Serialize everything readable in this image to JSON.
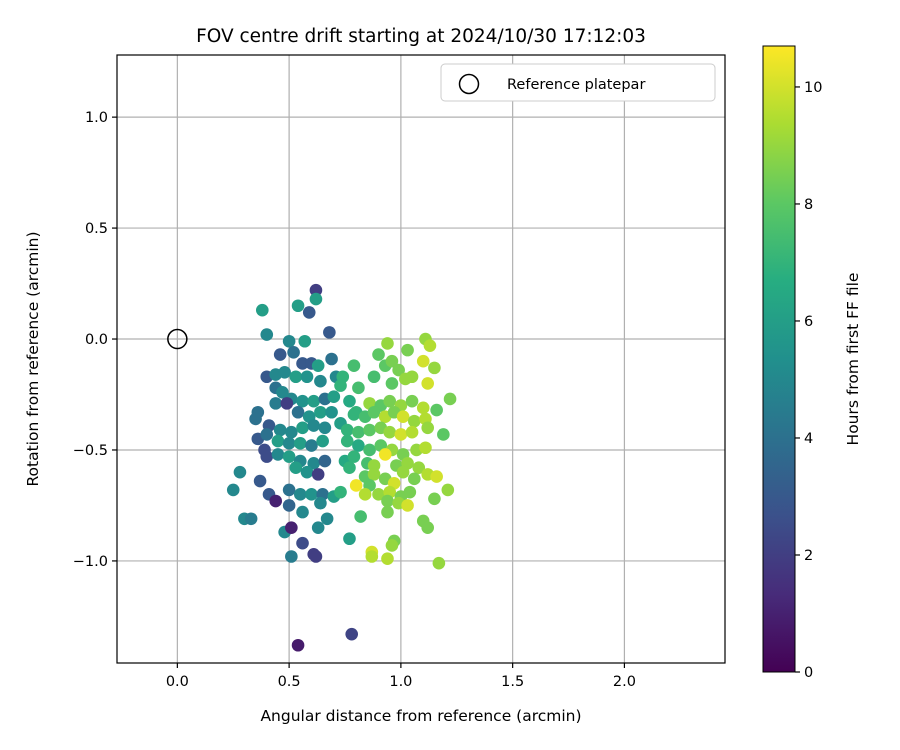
{
  "chart_data": {
    "type": "scatter",
    "title": "FOV centre drift starting at 2024/10/30 17:12:03",
    "xlabel": "Angular distance from reference (arcmin)",
    "ylabel": "Rotation from reference (arcmin)",
    "xlim": [
      -0.27,
      2.45
    ],
    "ylim": [
      -1.46,
      1.28
    ],
    "xticks": [
      0.0,
      0.5,
      1.0,
      1.5,
      2.0
    ],
    "xtick_labels": [
      "0.0",
      "0.5",
      "1.0",
      "1.5",
      "2.0"
    ],
    "yticks": [
      1.0,
      0.5,
      0.0,
      -0.5,
      -1.0
    ],
    "ytick_labels": [
      "1.0",
      "0.5",
      "0.0",
      "−0.5",
      "−1.0"
    ],
    "grid": true,
    "legend": {
      "placement": "top-right",
      "entries": [
        "Reference platepar"
      ]
    },
    "reference_point": {
      "label": "Reference platepar",
      "x": 0.0,
      "y": 0.0,
      "marker": "open-circle"
    },
    "colorbar": {
      "label": "Hours from first FF file",
      "colormap": "viridis",
      "range": [
        0,
        10.7
      ],
      "ticks": [
        0,
        2,
        4,
        6,
        8,
        10
      ],
      "tick_labels": [
        "0",
        "2",
        "4",
        "6",
        "8",
        "10"
      ]
    },
    "points": [
      [
        0.62,
        0.22,
        2.0
      ],
      [
        0.54,
        0.15,
        6.0
      ],
      [
        0.62,
        0.18,
        6.0
      ],
      [
        0.38,
        0.13,
        6.0
      ],
      [
        0.59,
        0.12,
        3.0
      ],
      [
        0.68,
        0.03,
        3.0
      ],
      [
        0.4,
        0.02,
        5.0
      ],
      [
        0.57,
        -0.01,
        6.0
      ],
      [
        0.5,
        -0.01,
        5.0
      ],
      [
        0.46,
        -0.07,
        3.0
      ],
      [
        0.52,
        -0.06,
        4.0
      ],
      [
        0.56,
        -0.11,
        3.0
      ],
      [
        0.6,
        -0.11,
        3.0
      ],
      [
        0.69,
        -0.09,
        4.0
      ],
      [
        0.63,
        -0.12,
        6.0
      ],
      [
        0.4,
        -0.17,
        3.0
      ],
      [
        0.44,
        -0.16,
        5.0
      ],
      [
        0.48,
        -0.15,
        5.0
      ],
      [
        0.53,
        -0.17,
        6.0
      ],
      [
        0.58,
        -0.17,
        5.5
      ],
      [
        0.64,
        -0.19,
        5.0
      ],
      [
        0.71,
        -0.17,
        5.0
      ],
      [
        0.74,
        -0.17,
        7.0
      ],
      [
        0.44,
        -0.22,
        4.0
      ],
      [
        0.47,
        -0.24,
        5.0
      ],
      [
        0.51,
        -0.27,
        5.0
      ],
      [
        0.56,
        -0.28,
        5.5
      ],
      [
        0.61,
        -0.28,
        6.0
      ],
      [
        0.66,
        -0.27,
        4.0
      ],
      [
        0.7,
        -0.26,
        6.0
      ],
      [
        0.44,
        -0.29,
        4.5
      ],
      [
        0.49,
        -0.29,
        2.0
      ],
      [
        0.54,
        -0.33,
        4.0
      ],
      [
        0.59,
        -0.35,
        5.5
      ],
      [
        0.64,
        -0.33,
        6.0
      ],
      [
        0.69,
        -0.33,
        5.5
      ],
      [
        0.36,
        -0.33,
        4.0
      ],
      [
        0.35,
        -0.36,
        4.0
      ],
      [
        0.41,
        -0.39,
        3.0
      ],
      [
        0.46,
        -0.41,
        5.0
      ],
      [
        0.51,
        -0.42,
        5.0
      ],
      [
        0.56,
        -0.4,
        6.0
      ],
      [
        0.61,
        -0.39,
        5.0
      ],
      [
        0.66,
        -0.4,
        5.0
      ],
      [
        0.36,
        -0.45,
        3.0
      ],
      [
        0.4,
        -0.43,
        4.0
      ],
      [
        0.45,
        -0.46,
        6.0
      ],
      [
        0.5,
        -0.47,
        5.0
      ],
      [
        0.55,
        -0.47,
        6.0
      ],
      [
        0.6,
        -0.48,
        4.5
      ],
      [
        0.65,
        -0.46,
        6.0
      ],
      [
        0.39,
        -0.5,
        2.5
      ],
      [
        0.4,
        -0.53,
        2.5
      ],
      [
        0.45,
        -0.52,
        5.0
      ],
      [
        0.5,
        -0.53,
        6.0
      ],
      [
        0.55,
        -0.55,
        5.0
      ],
      [
        0.61,
        -0.56,
        5.0
      ],
      [
        0.66,
        -0.55,
        3.5
      ],
      [
        0.53,
        -0.58,
        6.0
      ],
      [
        0.58,
        -0.6,
        5.5
      ],
      [
        0.63,
        -0.61,
        2.0
      ],
      [
        0.28,
        -0.6,
        5.0
      ],
      [
        0.37,
        -0.64,
        3.0
      ],
      [
        0.41,
        -0.7,
        3.0
      ],
      [
        0.44,
        -0.73,
        1.0
      ],
      [
        0.5,
        -0.68,
        4.0
      ],
      [
        0.55,
        -0.7,
        5.0
      ],
      [
        0.6,
        -0.7,
        5.5
      ],
      [
        0.65,
        -0.7,
        4.0
      ],
      [
        0.7,
        -0.71,
        6.0
      ],
      [
        0.25,
        -0.68,
        5.0
      ],
      [
        0.3,
        -0.81,
        5.0
      ],
      [
        0.33,
        -0.81,
        4.5
      ],
      [
        0.5,
        -0.75,
        3.5
      ],
      [
        0.56,
        -0.78,
        5.0
      ],
      [
        0.64,
        -0.74,
        5.0
      ],
      [
        0.67,
        -0.81,
        5.0
      ],
      [
        0.48,
        -0.87,
        5.0
      ],
      [
        0.51,
        -0.85,
        1.0
      ],
      [
        0.63,
        -0.85,
        5.0
      ],
      [
        0.56,
        -0.92,
        2.5
      ],
      [
        0.61,
        -0.97,
        2.0
      ],
      [
        0.62,
        -0.98,
        2.0
      ],
      [
        0.51,
        -0.98,
        4.5
      ],
      [
        0.77,
        -0.9,
        6.0
      ],
      [
        0.54,
        -1.38,
        0.8
      ],
      [
        0.78,
        -1.33,
        2.2
      ],
      [
        0.79,
        -0.12,
        7.5
      ],
      [
        0.88,
        -0.17,
        7.5
      ],
      [
        0.93,
        -0.12,
        8.0
      ],
      [
        0.96,
        -0.1,
        8.5
      ],
      [
        0.9,
        -0.07,
        8.0
      ],
      [
        0.94,
        -0.02,
        9.0
      ],
      [
        1.03,
        -0.05,
        8.5
      ],
      [
        1.11,
        0.0,
        9.0
      ],
      [
        1.13,
        -0.03,
        9.5
      ],
      [
        1.1,
        -0.1,
        10.0
      ],
      [
        1.15,
        -0.13,
        9.0
      ],
      [
        0.99,
        -0.14,
        8.5
      ],
      [
        1.05,
        -0.17,
        9.0
      ],
      [
        0.73,
        -0.21,
        7.0
      ],
      [
        0.81,
        -0.22,
        7.5
      ],
      [
        0.96,
        -0.2,
        8.0
      ],
      [
        1.02,
        -0.18,
        9.0
      ],
      [
        1.12,
        -0.2,
        10.0
      ],
      [
        0.77,
        -0.28,
        6.5
      ],
      [
        0.8,
        -0.33,
        7.0
      ],
      [
        0.86,
        -0.29,
        9.0
      ],
      [
        0.91,
        -0.3,
        8.0
      ],
      [
        0.95,
        -0.28,
        8.5
      ],
      [
        1.0,
        -0.3,
        9.0
      ],
      [
        1.05,
        -0.28,
        8.5
      ],
      [
        1.1,
        -0.31,
        9.5
      ],
      [
        1.16,
        -0.32,
        8.0
      ],
      [
        1.22,
        -0.27,
        8.5
      ],
      [
        0.73,
        -0.38,
        6.0
      ],
      [
        0.79,
        -0.34,
        7.0
      ],
      [
        0.84,
        -0.35,
        7.5
      ],
      [
        0.88,
        -0.33,
        8.0
      ],
      [
        0.93,
        -0.35,
        9.5
      ],
      [
        0.97,
        -0.33,
        8.5
      ],
      [
        1.01,
        -0.35,
        10.0
      ],
      [
        1.06,
        -0.37,
        9.0
      ],
      [
        1.11,
        -0.36,
        9.5
      ],
      [
        0.76,
        -0.41,
        7.0
      ],
      [
        0.81,
        -0.42,
        7.5
      ],
      [
        0.86,
        -0.41,
        8.0
      ],
      [
        0.91,
        -0.4,
        8.5
      ],
      [
        0.95,
        -0.42,
        9.0
      ],
      [
        1.0,
        -0.43,
        10.0
      ],
      [
        1.05,
        -0.42,
        9.5
      ],
      [
        1.12,
        -0.4,
        9.0
      ],
      [
        1.19,
        -0.43,
        8.0
      ],
      [
        0.76,
        -0.46,
        7.0
      ],
      [
        0.81,
        -0.48,
        6.5
      ],
      [
        0.86,
        -0.5,
        7.5
      ],
      [
        0.91,
        -0.48,
        8.0
      ],
      [
        0.96,
        -0.5,
        9.0
      ],
      [
        1.01,
        -0.52,
        8.5
      ],
      [
        1.07,
        -0.5,
        9.0
      ],
      [
        1.11,
        -0.49,
        9.5
      ],
      [
        0.75,
        -0.55,
        6.5
      ],
      [
        0.79,
        -0.53,
        7.0
      ],
      [
        0.85,
        -0.56,
        7.5
      ],
      [
        0.88,
        -0.57,
        9.0
      ],
      [
        0.93,
        -0.52,
        10.5
      ],
      [
        0.98,
        -0.57,
        8.5
      ],
      [
        1.03,
        -0.56,
        9.0
      ],
      [
        1.08,
        -0.58,
        9.0
      ],
      [
        0.77,
        -0.58,
        7.0
      ],
      [
        0.84,
        -0.62,
        8.0
      ],
      [
        0.88,
        -0.61,
        9.0
      ],
      [
        0.93,
        -0.63,
        8.5
      ],
      [
        0.97,
        -0.65,
        10.0
      ],
      [
        1.01,
        -0.6,
        9.0
      ],
      [
        1.06,
        -0.63,
        8.5
      ],
      [
        1.12,
        -0.61,
        9.5
      ],
      [
        1.16,
        -0.62,
        10.0
      ],
      [
        0.8,
        -0.66,
        10.5
      ],
      [
        0.86,
        -0.66,
        8.0
      ],
      [
        0.9,
        -0.7,
        9.0
      ],
      [
        0.95,
        -0.69,
        9.5
      ],
      [
        1.0,
        -0.71,
        8.5
      ],
      [
        1.04,
        -0.69,
        8.5
      ],
      [
        1.15,
        -0.72,
        8.5
      ],
      [
        1.21,
        -0.68,
        9.0
      ],
      [
        0.73,
        -0.69,
        7.0
      ],
      [
        0.84,
        -0.7,
        9.5
      ],
      [
        0.94,
        -0.73,
        8.5
      ],
      [
        0.99,
        -0.74,
        9.0
      ],
      [
        1.03,
        -0.75,
        10.0
      ],
      [
        0.94,
        -0.78,
        8.5
      ],
      [
        0.82,
        -0.8,
        7.5
      ],
      [
        1.1,
        -0.82,
        8.5
      ],
      [
        1.12,
        -0.85,
        8.5
      ],
      [
        0.97,
        -0.91,
        8.5
      ],
      [
        0.96,
        -0.93,
        9.0
      ],
      [
        0.87,
        -0.96,
        10.0
      ],
      [
        0.87,
        -0.98,
        9.5
      ],
      [
        0.94,
        -0.99,
        9.5
      ],
      [
        1.17,
        -1.01,
        9.0
      ]
    ]
  }
}
